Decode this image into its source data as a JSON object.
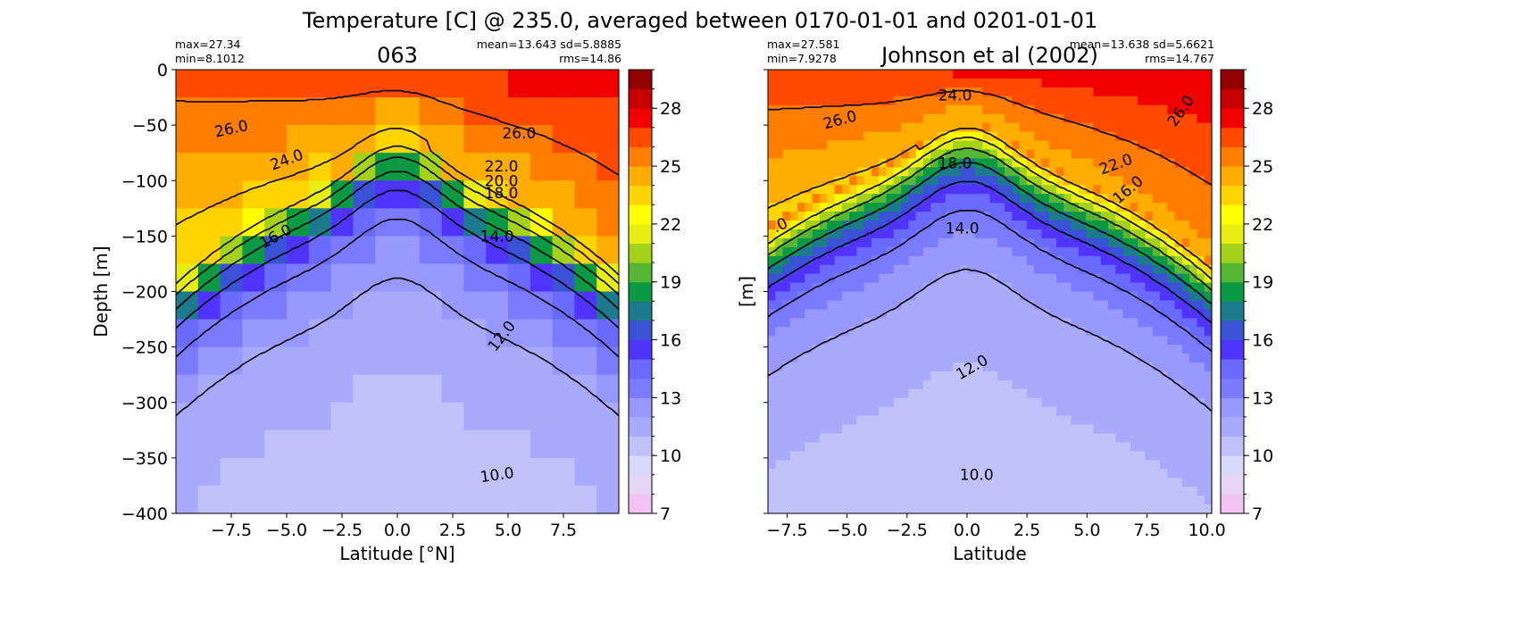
{
  "figure": {
    "suptitle": "Temperature [C] @ 235.0, averaged between 0170-01-01 and 0201-01-01"
  },
  "colorbar": {
    "ticks": [
      7,
      10,
      13,
      16,
      19,
      22,
      25,
      28
    ],
    "bounds": [
      7,
      8,
      9,
      10,
      11,
      12,
      13,
      14,
      15,
      16,
      17,
      18,
      19,
      20,
      21,
      22,
      23,
      24,
      25,
      26,
      27,
      28,
      29,
      30
    ],
    "colors": [
      "#f3c3f3",
      "#e6d5f5",
      "#d8d8fb",
      "#c2c2fb",
      "#aaaafd",
      "#9898ff",
      "#7b7bff",
      "#6a6aff",
      "#5133ff",
      "#3a52d6",
      "#1b7a8c",
      "#0b9944",
      "#55b733",
      "#a4d21b",
      "#e8ee12",
      "#ffff00",
      "#ffd400",
      "#ffad00",
      "#ff7d00",
      "#ff4a00",
      "#f00000",
      "#c80000",
      "#940000",
      "#600000"
    ]
  },
  "chart_data": [
    {
      "type": "heatmap",
      "title": "063",
      "stats_left": [
        "max=27.34",
        "min=8.1012"
      ],
      "stats_right": [
        "mean=13.643 sd=5.8885",
        "rms=14.86"
      ],
      "xlabel": "Latitude [°N]",
      "ylabel": "Depth [m]",
      "xlim": [
        -10,
        10
      ],
      "ylim": [
        -400,
        0
      ],
      "xticks": [
        -7.5,
        -5.0,
        -2.5,
        0.0,
        2.5,
        5.0,
        7.5
      ],
      "xtick_labels": [
        "−7.5",
        "−5.0",
        "−2.5",
        "0.0",
        "2.5",
        "5.0",
        "7.5"
      ],
      "yticks": [
        0,
        -50,
        -100,
        -150,
        -200,
        -250,
        -300,
        -350,
        -400
      ],
      "ytick_labels": [
        "0",
        "−50",
        "−100",
        "−150",
        "−200",
        "−250",
        "−300",
        "−350",
        "−400"
      ],
      "grid": false,
      "contour_levels": [
        10,
        12,
        14,
        16,
        18,
        20,
        22,
        24,
        26
      ],
      "contour_labels": [
        {
          "text": "26.0",
          "x": -7.5,
          "y": -53,
          "angle": -12
        },
        {
          "text": "26.0",
          "x": 5.5,
          "y": -57,
          "angle": 0
        },
        {
          "text": "24.0",
          "x": -5.0,
          "y": -81,
          "angle": -20
        },
        {
          "text": "22.0",
          "x": 4.7,
          "y": -87,
          "angle": 0
        },
        {
          "text": "20.0",
          "x": 4.7,
          "y": -100,
          "angle": 0
        },
        {
          "text": "18.0",
          "x": 4.7,
          "y": -111,
          "angle": 0
        },
        {
          "text": "16.0",
          "x": -5.5,
          "y": -150,
          "angle": -28
        },
        {
          "text": "14.0",
          "x": 4.5,
          "y": -150,
          "angle": 0
        },
        {
          "text": "12.0",
          "x": 4.7,
          "y": -240,
          "angle": -52
        },
        {
          "text": "10.0",
          "x": 4.5,
          "y": -365,
          "angle": -8
        }
      ]
    },
    {
      "type": "heatmap",
      "title": "Johnson et al (2002)",
      "stats_left": [
        "max=27.581",
        "min=7.9278"
      ],
      "stats_right": [
        "mean=13.638 sd=5.6621",
        "rms=14.767"
      ],
      "xlabel": "Latitude",
      "ylabel": "[m]",
      "xlim": [
        -8.3,
        10.2
      ],
      "ylim": [
        -400,
        0
      ],
      "xticks": [
        -7.5,
        -5.0,
        -2.5,
        0.0,
        2.5,
        5.0,
        7.5,
        10.0
      ],
      "xtick_labels": [
        "−7.5",
        "−5.0",
        "−2.5",
        "0.0",
        "2.5",
        "5.0",
        "7.5",
        "10.0"
      ],
      "yticks": [
        0,
        -50,
        -100,
        -150,
        -200,
        -250,
        -300,
        -350,
        -400
      ],
      "grid": false,
      "contour_levels": [
        10,
        12,
        14,
        16,
        18,
        20,
        22,
        24,
        26
      ],
      "contour_labels": [
        {
          "text": "26.0",
          "x": -5.3,
          "y": -45,
          "angle": -15
        },
        {
          "text": "24.0",
          "x": -0.5,
          "y": -23,
          "angle": 0
        },
        {
          "text": "18.0",
          "x": -0.5,
          "y": -84,
          "angle": 0
        },
        {
          "text": "22.0",
          "x": 6.2,
          "y": -85,
          "angle": -20
        },
        {
          "text": "16.0",
          "x": 6.7,
          "y": -108,
          "angle": -40
        },
        {
          "text": "26.0",
          "x": 8.9,
          "y": -37,
          "angle": -55
        },
        {
          "text": ".0",
          "x": -7.8,
          "y": -140,
          "angle": -25
        },
        {
          "text": "14.0",
          "x": -0.2,
          "y": -143,
          "angle": 0
        },
        {
          "text": "12.0",
          "x": 0.2,
          "y": -268,
          "angle": -30
        },
        {
          "text": "10.0",
          "x": 0.4,
          "y": -365,
          "angle": 0
        }
      ]
    }
  ]
}
